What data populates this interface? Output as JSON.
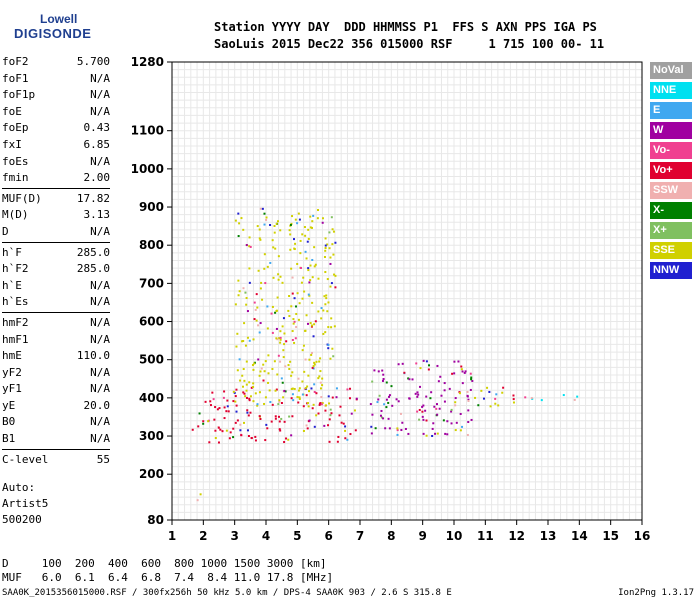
{
  "logo": {
    "line1": "Lowell",
    "line2": "DIGISONDE"
  },
  "header": {
    "line1": "Station YYYY DAY  DDD HHMMSS P1  FFS S AXN PPS IGA PS",
    "line2": "SaoLuis 2015 Dec22 356 015000 RSF     1 715 100 00- 11"
  },
  "params": {
    "group1": [
      {
        "k": "foF2",
        "v": "5.700"
      },
      {
        "k": "foF1",
        "v": "N/A"
      },
      {
        "k": "foF1p",
        "v": "N/A"
      },
      {
        "k": "foE",
        "v": "N/A"
      },
      {
        "k": "foEp",
        "v": "0.43"
      },
      {
        "k": "fxI",
        "v": "6.85"
      },
      {
        "k": "foEs",
        "v": "N/A"
      },
      {
        "k": "fmin",
        "v": "2.00"
      }
    ],
    "group2": [
      {
        "k": "MUF(D)",
        "v": "17.82"
      },
      {
        "k": "M(D)",
        "v": "3.13"
      },
      {
        "k": "D",
        "v": "N/A"
      }
    ],
    "group3": [
      {
        "k": "h`F",
        "v": "285.0"
      },
      {
        "k": "h`F2",
        "v": "285.0"
      },
      {
        "k": "h`E",
        "v": "N/A"
      },
      {
        "k": "h`Es",
        "v": "N/A"
      }
    ],
    "group4": [
      {
        "k": "hmF2",
        "v": "N/A"
      },
      {
        "k": "hmF1",
        "v": "N/A"
      },
      {
        "k": "hmE",
        "v": "110.0"
      },
      {
        "k": "yF2",
        "v": "N/A"
      },
      {
        "k": "yF1",
        "v": "N/A"
      },
      {
        "k": "yE",
        "v": "20.0"
      },
      {
        "k": "B0",
        "v": "N/A"
      },
      {
        "k": "B1",
        "v": "N/A"
      }
    ],
    "group5": [
      {
        "k": "C-level",
        "v": "55"
      }
    ]
  },
  "auto": {
    "l1": "Auto:",
    "l2": "Artist5",
    "l3": "500200"
  },
  "legend": [
    {
      "label": "NoVal",
      "bg": "#a0a0a0",
      "fg": "#ffffff"
    },
    {
      "label": "NNE",
      "bg": "#00e0f0",
      "fg": "#ffffff"
    },
    {
      "label": "E",
      "bg": "#40a8f0",
      "fg": "#ffffff"
    },
    {
      "label": "W",
      "bg": "#a000a0",
      "fg": "#ffffff"
    },
    {
      "label": "Vo-",
      "bg": "#f04090",
      "fg": "#ffffff"
    },
    {
      "label": "Vo+",
      "bg": "#e00030",
      "fg": "#ffffff"
    },
    {
      "label": "SSW",
      "bg": "#f0b0b0",
      "fg": "#ffffff"
    },
    {
      "label": "X-",
      "bg": "#008000",
      "fg": "#ffffff"
    },
    {
      "label": "X+",
      "bg": "#80c060",
      "fg": "#ffffff"
    },
    {
      "label": "SSE",
      "bg": "#d0d000",
      "fg": "#ffffff"
    },
    {
      "label": "NNW",
      "bg": "#2020d0",
      "fg": "#ffffff"
    }
  ],
  "footer": {
    "dline": "D     100  200  400  600  800 1000 1500 3000 [km]",
    "mufline": "MUF   6.0  6.1  6.4  6.8  7.4  8.4 11.0 17.8 [MHz]",
    "file": "SAA0K_2015356015000.RSF / 300fx256h 50 kHz 5.0 km / DPS-4 SAA0K 903 / 2.6 S 315.8 E",
    "version": "Ion2Png 1.3.17"
  },
  "chart_data": {
    "type": "scatter",
    "xlim": [
      1,
      16
    ],
    "ylim": [
      80,
      1280
    ],
    "xticks": [
      "1",
      "2",
      "3",
      "4",
      "5",
      "6",
      "7",
      "8",
      "9",
      "10",
      "11",
      "12",
      "13",
      "14",
      "15",
      "16"
    ],
    "yticks": [
      "80",
      "200",
      "300",
      "400",
      "500",
      "600",
      "700",
      "800",
      "900",
      "1000",
      "1100",
      "1280"
    ],
    "grid": true,
    "legend_placement": "right",
    "trace_clusters": [
      {
        "x": [
          1.6,
          2.9
        ],
        "y": [
          285,
          420
        ],
        "dominant": "Vo+"
      },
      {
        "x": [
          2.9,
          6.9
        ],
        "y": [
          285,
          430
        ],
        "dominant": "Vo+"
      },
      {
        "x": [
          2.9,
          6.3
        ],
        "y": [
          380,
          420
        ],
        "dominant": "SSE"
      },
      {
        "x": [
          3.0,
          6.2
        ],
        "y": [
          420,
          900
        ],
        "dominant": "SSE"
      },
      {
        "x": [
          7.3,
          10.6
        ],
        "y": [
          300,
          500
        ],
        "dominant": "W"
      },
      {
        "x": [
          10.0,
          12.0
        ],
        "y": [
          380,
          430
        ],
        "dominant": "SSE"
      },
      {
        "x": [
          12.0,
          14.2
        ],
        "y": [
          395,
          410
        ],
        "dominant": "NNE"
      },
      {
        "x": [
          1.6,
          1.9
        ],
        "y": [
          130,
          170
        ],
        "dominant": "NNW"
      }
    ]
  }
}
